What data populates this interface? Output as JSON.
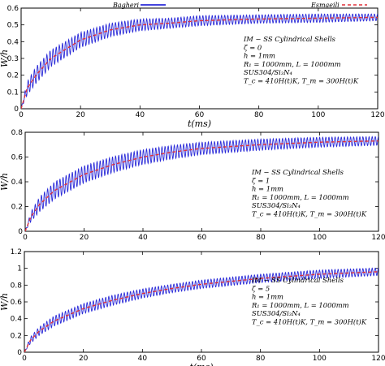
{
  "legend": [
    {
      "label": "Bagheri",
      "color": "#2a2ad8",
      "style": "solid"
    },
    {
      "label": "Esmaeili",
      "color": "#e0313a",
      "style": "dashed"
    }
  ],
  "chart_data": [
    {
      "type": "line",
      "xlabel": "t(ms)",
      "ylabel": "W/h",
      "xlim": [
        0,
        120
      ],
      "ylim": [
        0,
        0.6
      ],
      "xticks": [
        0,
        20,
        40,
        60,
        80,
        100,
        120
      ],
      "yticks": [
        0,
        0.1,
        0.2,
        0.3,
        0.4,
        0.5,
        0.6
      ],
      "annotation": [
        "IM − SS   Cylindrical Shells",
        "ζ = 0",
        "h = 1mm",
        "R₁ = 1000mm,    L = 1000mm",
        "SUS304/Si₃N₄",
        "T_c = 410H(t)K,    T_m = 300H(t)K"
      ],
      "series": [
        {
          "name": "Bagheri",
          "x": [
            0,
            2,
            5,
            10,
            20,
            30,
            40,
            50,
            60,
            80,
            100,
            120
          ],
          "y": [
            0,
            0.12,
            0.2,
            0.3,
            0.41,
            0.47,
            0.5,
            0.51,
            0.525,
            0.535,
            0.54,
            0.545
          ],
          "oscillation_amplitude": [
            0,
            0.04,
            0.05,
            0.05,
            0.045,
            0.04,
            0.035,
            0.03,
            0.03,
            0.025,
            0.025,
            0.02
          ]
        },
        {
          "name": "Esmaeili",
          "x": [
            0,
            2,
            5,
            10,
            20,
            30,
            40,
            50,
            60,
            80,
            100,
            120
          ],
          "y": [
            0,
            0.12,
            0.2,
            0.3,
            0.41,
            0.47,
            0.5,
            0.51,
            0.525,
            0.535,
            0.54,
            0.545
          ]
        }
      ]
    },
    {
      "type": "line",
      "xlabel": "",
      "ylabel": "W/h",
      "xlim": [
        0,
        120
      ],
      "ylim": [
        0,
        0.8
      ],
      "xticks": [
        0,
        20,
        40,
        60,
        80,
        100,
        120
      ],
      "yticks": [
        0,
        0.2,
        0.4,
        0.6,
        0.8
      ],
      "annotation": [
        "IM − SS   Cylindrical Shells",
        "ζ = 1",
        "h = 1mm",
        "R₁ = 1000mm,    L = 1000mm",
        "SUS304/Si₃N₄",
        "T_c = 410H(t)K,    T_m = 300H(t)K"
      ],
      "series": [
        {
          "name": "Bagheri",
          "x": [
            0,
            2,
            5,
            10,
            20,
            30,
            40,
            50,
            60,
            80,
            100,
            120
          ],
          "y": [
            0,
            0.12,
            0.22,
            0.33,
            0.46,
            0.54,
            0.6,
            0.64,
            0.67,
            0.7,
            0.72,
            0.73
          ],
          "oscillation_amplitude": [
            0,
            0.04,
            0.06,
            0.07,
            0.07,
            0.065,
            0.06,
            0.055,
            0.05,
            0.045,
            0.04,
            0.035
          ]
        },
        {
          "name": "Esmaeili",
          "x": [
            0,
            2,
            5,
            10,
            20,
            30,
            40,
            50,
            60,
            80,
            100,
            120
          ],
          "y": [
            0,
            0.12,
            0.22,
            0.33,
            0.46,
            0.54,
            0.6,
            0.64,
            0.67,
            0.7,
            0.72,
            0.73
          ]
        }
      ]
    },
    {
      "type": "line",
      "xlabel": "t(ms)",
      "ylabel": "W/h",
      "xlim": [
        0,
        120
      ],
      "ylim": [
        0,
        1.2
      ],
      "xticks": [
        0,
        20,
        40,
        60,
        80,
        100,
        120
      ],
      "yticks": [
        0,
        0.2,
        0.4,
        0.6,
        0.8,
        1,
        1.2
      ],
      "annotation": [
        "IM − SS   Cylindrical Shells",
        "ζ = 5",
        "h = 1mm",
        "R₁ = 1000mm,    L = 1000mm",
        "SUS304/Si₃N₄",
        "T_c = 410H(t)K,    T_m = 300H(t)K"
      ],
      "series": [
        {
          "name": "Bagheri",
          "x": [
            0,
            2,
            5,
            10,
            20,
            30,
            40,
            50,
            60,
            80,
            100,
            120
          ],
          "y": [
            0,
            0.14,
            0.25,
            0.37,
            0.52,
            0.62,
            0.7,
            0.76,
            0.81,
            0.88,
            0.93,
            0.96
          ],
          "oscillation_amplitude": [
            0,
            0.04,
            0.05,
            0.06,
            0.06,
            0.06,
            0.055,
            0.05,
            0.05,
            0.05,
            0.05,
            0.045
          ]
        },
        {
          "name": "Esmaeili",
          "x": [
            0,
            2,
            5,
            10,
            20,
            30,
            40,
            50,
            60,
            80,
            100,
            120
          ],
          "y": [
            0,
            0.14,
            0.25,
            0.37,
            0.52,
            0.62,
            0.7,
            0.76,
            0.81,
            0.88,
            0.93,
            0.96
          ]
        }
      ]
    }
  ]
}
